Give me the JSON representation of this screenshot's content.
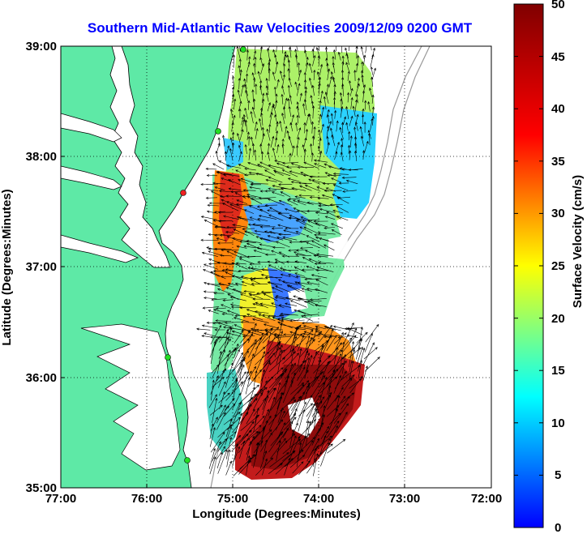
{
  "title": "Southern Mid-Atlantic Raw Velocities 2009/12/09 0200 GMT",
  "x_axis": {
    "label": "Longitude (Degrees:Minutes)",
    "ticks": [
      "77:00",
      "76:00",
      "75:00",
      "74:00",
      "73:00",
      "72:00"
    ]
  },
  "y_axis": {
    "label": "Latitude (Degrees:Minutes)",
    "ticks": [
      "39:00",
      "38:00",
      "37:00",
      "36:00",
      "35:00"
    ]
  },
  "colorbar": {
    "label": "Surface Velocity (cm/s)",
    "ticks": [
      "50",
      "45",
      "40",
      "35",
      "30",
      "25",
      "20",
      "15",
      "10",
      "5",
      "0"
    ],
    "range": [
      0,
      50
    ],
    "colormap": "jet"
  },
  "colors": {
    "land": "#5ee9a6",
    "title": "#0000ff",
    "grid": "#000000"
  }
}
